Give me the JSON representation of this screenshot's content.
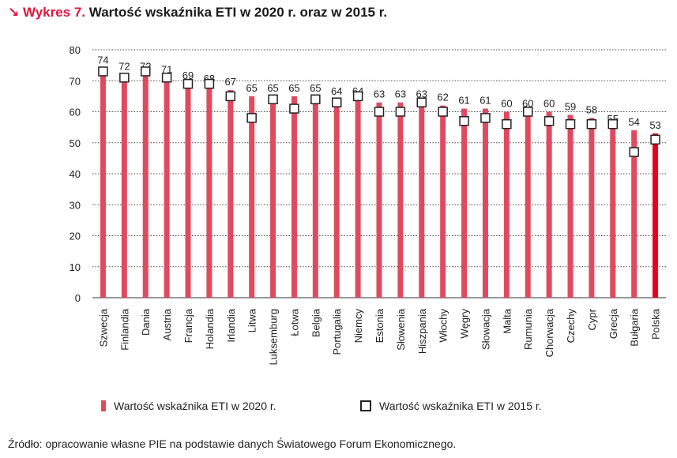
{
  "header": {
    "label": "↘ Wykres 7.",
    "title": "Wartość wskaźnika ETI w 2020 r. oraz w 2015 r."
  },
  "legend": {
    "series_2020": "Wartość wskaźnika ETI w 2020 r.",
    "series_2015": "Wartość wskaźnika ETI w 2015 r."
  },
  "source": "Źródło: opracowanie własne PIE na podstawie danych Światowego Forum Ekonomicznego.",
  "colors": {
    "bar": "#e04a5f",
    "bar_highlight": "#e8001c",
    "accent": "#e0143c",
    "marker": "#222222"
  },
  "chart_data": {
    "type": "bar",
    "title": "Wartość wskaźnika ETI w 2020 r. oraz w 2015 r.",
    "ylim": [
      0,
      80
    ],
    "yticks": [
      0,
      10,
      20,
      30,
      40,
      50,
      60,
      70,
      80
    ],
    "grid": true,
    "legend_position": "bottom",
    "highlight_category": "Polska",
    "categories": [
      "Szwecja",
      "Finlandia",
      "Dania",
      "Austria",
      "Francja",
      "Holandia",
      "Irlandia",
      "Litwa",
      "Luksemburg",
      "Łotwa",
      "Belgia",
      "Portugalia",
      "Niemcy",
      "Estonia",
      "Słowenia",
      "Hiszpania",
      "Włochy",
      "Węgry",
      "Słowacja",
      "Malta",
      "Rumunia",
      "Chorwacja",
      "Czechy",
      "Cypr",
      "Grecja",
      "Bułgaria",
      "Polska"
    ],
    "series": [
      {
        "name": "Wartość wskaźnika ETI w 2020 r.",
        "kind": "bar",
        "values": [
          74,
          72,
          72,
          71,
          69,
          68,
          67,
          65,
          65,
          65,
          65,
          64,
          64,
          63,
          63,
          63,
          62,
          61,
          61,
          60,
          60,
          60,
          59,
          58,
          55,
          54,
          53
        ]
      },
      {
        "name": "Wartość wskaźnika ETI w 2015 r.",
        "kind": "marker",
        "values": [
          73,
          71,
          73,
          71,
          69,
          69,
          65,
          58,
          64,
          61,
          64,
          63,
          65,
          60,
          60,
          63,
          60,
          57,
          58,
          56,
          60,
          57,
          56,
          56,
          56,
          47,
          51
        ]
      }
    ]
  }
}
